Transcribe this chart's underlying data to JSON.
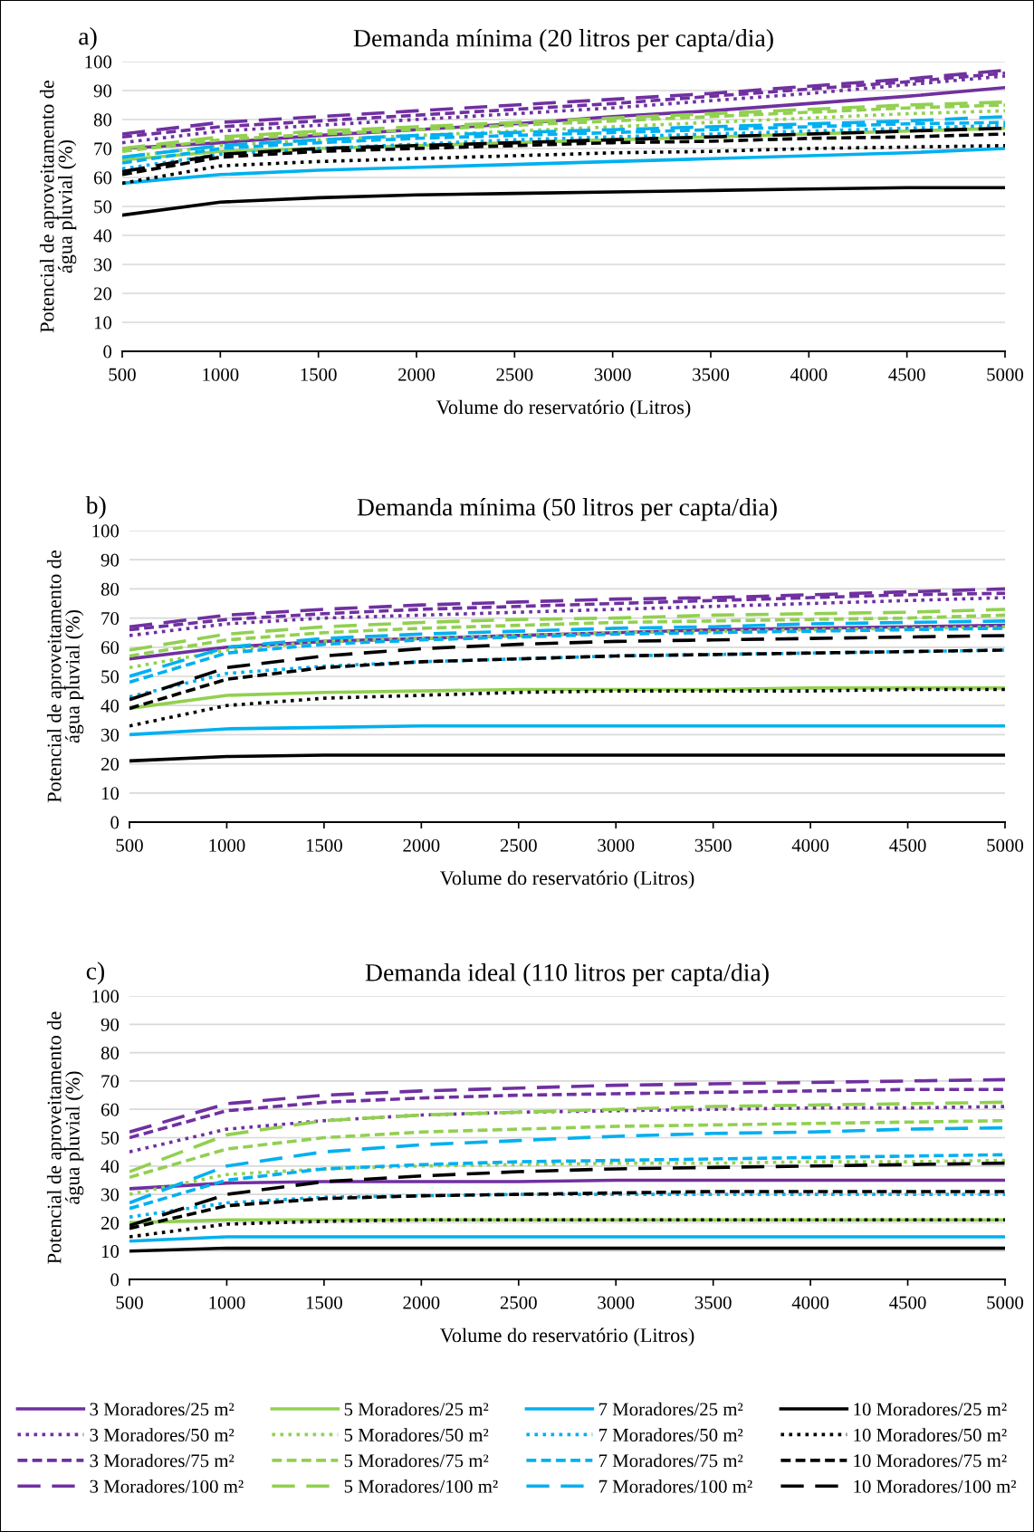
{
  "chart_data": [
    {
      "type": "line",
      "title": "Demanda mínima (20 litros per capta/dia)",
      "annotations": [
        "a)"
      ],
      "xlabel": "Volume do reservatório (Litros)",
      "ylabel": "Potencial de aproveitamento de\nágua pluvial (%)",
      "x": [
        500,
        1000,
        1500,
        2000,
        2500,
        3000,
        3500,
        4000,
        4500,
        5000
      ],
      "xlim": [
        500,
        5000
      ],
      "xticks": [
        500,
        1000,
        1500,
        2000,
        2500,
        3000,
        3500,
        4000,
        4500,
        5000
      ],
      "ylim": [
        0,
        100
      ],
      "yticks": [
        0,
        10,
        20,
        30,
        40,
        50,
        60,
        70,
        80,
        90,
        100
      ],
      "grid": "y",
      "series": [
        {
          "color": "#7030a0",
          "line_style": "solid",
          "values": [
            70,
            72,
            74.5,
            76.5,
            78.5,
            81,
            83,
            85.5,
            88,
            91
          ]
        },
        {
          "color": "#7030a0",
          "line_style": "dotted",
          "values": [
            72,
            76,
            78,
            80,
            82,
            84,
            86.5,
            89,
            92,
            95
          ]
        },
        {
          "color": "#7030a0",
          "line_style": "dashed",
          "values": [
            74,
            77.5,
            79.5,
            81.5,
            83.5,
            85.5,
            88,
            90.5,
            93,
            96
          ]
        },
        {
          "color": "#7030a0",
          "line_style": "long_dashed",
          "values": [
            75,
            79,
            81,
            83,
            85,
            87,
            89,
            91.5,
            94,
            97
          ]
        },
        {
          "color": "#92d050",
          "line_style": "solid",
          "values": [
            66,
            69,
            70,
            71,
            72,
            73,
            74,
            75,
            76,
            77
          ]
        },
        {
          "color": "#92d050",
          "line_style": "dotted",
          "values": [
            67,
            71,
            73,
            74.5,
            76,
            77.5,
            79,
            80.5,
            82,
            83
          ]
        },
        {
          "color": "#92d050",
          "line_style": "dashed",
          "values": [
            69,
            73,
            75,
            76.5,
            78,
            79.5,
            81,
            82.5,
            84,
            85
          ]
        },
        {
          "color": "#92d050",
          "line_style": "long_dashed",
          "values": [
            70,
            74,
            76,
            77.5,
            79,
            80.5,
            82,
            83.5,
            85,
            86
          ]
        },
        {
          "color": "#00b0f0",
          "line_style": "solid",
          "values": [
            58,
            61,
            62.5,
            63.5,
            64.5,
            65.5,
            66.5,
            67.5,
            68.5,
            70
          ]
        },
        {
          "color": "#00b0f0",
          "line_style": "dotted",
          "values": [
            63,
            68,
            70,
            71.5,
            73,
            74,
            75,
            76,
            77,
            78
          ]
        },
        {
          "color": "#00b0f0",
          "line_style": "dashed",
          "values": [
            65,
            70,
            72,
            73.5,
            74.5,
            75.5,
            76.5,
            77.5,
            78.5,
            79
          ]
        },
        {
          "color": "#00b0f0",
          "line_style": "long_dashed",
          "values": [
            67,
            71,
            73,
            74.5,
            75.5,
            76.5,
            77.5,
            78.5,
            79.5,
            81
          ]
        },
        {
          "color": "#000000",
          "line_style": "solid",
          "values": [
            47,
            51.5,
            53,
            54,
            54.5,
            55,
            55.5,
            56,
            56.5,
            56.5
          ]
        },
        {
          "color": "#000000",
          "line_style": "dotted",
          "values": [
            58,
            64,
            65.5,
            66.5,
            67.5,
            68.5,
            69,
            70,
            70.5,
            71
          ]
        },
        {
          "color": "#000000",
          "line_style": "dashed",
          "values": [
            61,
            67,
            69,
            70,
            71,
            72,
            72.5,
            73.5,
            74,
            75
          ]
        },
        {
          "color": "#000000",
          "line_style": "long_dashed",
          "values": [
            62,
            68,
            70,
            71,
            72,
            73,
            74,
            75,
            76,
            77
          ]
        }
      ]
    },
    {
      "type": "line",
      "title": "Demanda mínima (50 litros per capta/dia)",
      "annotations": [
        "b)"
      ],
      "xlabel": "Volume do reservatório (Litros)",
      "ylabel": "Potencial de aproveitamento de\nágua pluvial (%)",
      "x": [
        500,
        1000,
        1500,
        2000,
        2500,
        3000,
        3500,
        4000,
        4500,
        5000
      ],
      "xlim": [
        500,
        5000
      ],
      "xticks": [
        500,
        1000,
        1500,
        2000,
        2500,
        3000,
        3500,
        4000,
        4500,
        5000
      ],
      "ylim": [
        0,
        100
      ],
      "yticks": [
        0,
        10,
        20,
        30,
        40,
        50,
        60,
        70,
        80,
        90,
        100
      ],
      "grid": "y",
      "series": [
        {
          "color": "#7030a0",
          "line_style": "solid",
          "values": [
            56,
            60,
            62,
            63,
            64,
            65,
            66,
            66.5,
            67,
            67.5
          ]
        },
        {
          "color": "#7030a0",
          "line_style": "dotted",
          "values": [
            64,
            68,
            70,
            71,
            72,
            73,
            74,
            75,
            76,
            77
          ]
        },
        {
          "color": "#7030a0",
          "line_style": "dashed",
          "values": [
            66,
            69.5,
            71.5,
            73,
            74,
            75,
            76,
            77,
            78,
            78.5
          ]
        },
        {
          "color": "#7030a0",
          "line_style": "long_dashed",
          "values": [
            67,
            71,
            73,
            74.5,
            75.5,
            76.5,
            77,
            78,
            79,
            80
          ]
        },
        {
          "color": "#92d050",
          "line_style": "solid",
          "values": [
            39,
            43.5,
            44.5,
            45,
            45.5,
            45.5,
            45.5,
            46,
            46,
            46
          ]
        },
        {
          "color": "#92d050",
          "line_style": "dotted",
          "values": [
            53,
            59,
            62,
            63,
            64,
            65,
            65.5,
            66,
            66.5,
            67
          ]
        },
        {
          "color": "#92d050",
          "line_style": "dashed",
          "values": [
            57,
            62.5,
            65,
            66.5,
            67.5,
            68.5,
            69,
            69.5,
            70,
            71
          ]
        },
        {
          "color": "#92d050",
          "line_style": "long_dashed",
          "values": [
            59,
            64.5,
            67,
            68.5,
            69.5,
            70,
            71,
            71.5,
            72,
            73
          ]
        },
        {
          "color": "#00b0f0",
          "line_style": "solid",
          "values": [
            30,
            32,
            32.5,
            33,
            33,
            33,
            33,
            33,
            33,
            33
          ]
        },
        {
          "color": "#00b0f0",
          "line_style": "dotted",
          "values": [
            43,
            51,
            53.5,
            55,
            56,
            57,
            57.5,
            58,
            58.5,
            59
          ]
        },
        {
          "color": "#00b0f0",
          "line_style": "dashed",
          "values": [
            48,
            58,
            61,
            62.5,
            63.5,
            64.5,
            65,
            65.5,
            66,
            66.5
          ]
        },
        {
          "color": "#00b0f0",
          "line_style": "long_dashed",
          "values": [
            50,
            60,
            63,
            64.5,
            65.5,
            66.5,
            67,
            68,
            68.5,
            69
          ]
        },
        {
          "color": "#000000",
          "line_style": "solid",
          "values": [
            21,
            22.5,
            23,
            23,
            23,
            23,
            23,
            23,
            23,
            23
          ]
        },
        {
          "color": "#000000",
          "line_style": "dotted",
          "values": [
            33,
            40,
            42.5,
            43.5,
            44.5,
            45,
            45,
            45,
            45.5,
            45.5
          ]
        },
        {
          "color": "#000000",
          "line_style": "dashed",
          "values": [
            39,
            49,
            53,
            55,
            56,
            57,
            57.5,
            58,
            58.5,
            59
          ]
        },
        {
          "color": "#000000",
          "line_style": "long_dashed",
          "values": [
            42,
            53,
            57,
            59.5,
            61,
            62,
            62.5,
            63,
            63.5,
            64
          ]
        }
      ]
    },
    {
      "type": "line",
      "title": "Demanda ideal (110 litros per capta/dia)",
      "annotations": [
        "c)"
      ],
      "xlabel": "Volume do reservatório (Litros)",
      "ylabel": "Potencial de aproveitamento de\nágua pluvial (%)",
      "x": [
        500,
        1000,
        1500,
        2000,
        2500,
        3000,
        3500,
        4000,
        4500,
        5000
      ],
      "xlim": [
        500,
        5000
      ],
      "xticks": [
        500,
        1000,
        1500,
        2000,
        2500,
        3000,
        3500,
        4000,
        4500,
        5000
      ],
      "ylim": [
        0,
        100
      ],
      "yticks": [
        0,
        10,
        20,
        30,
        40,
        50,
        60,
        70,
        80,
        90,
        100
      ],
      "grid": "y",
      "legend": "bottom",
      "series": [
        {
          "name": "3 Moradores/25 m²",
          "color": "#7030a0",
          "line_style": "solid",
          "values": [
            32,
            34,
            34.5,
            34.5,
            34.5,
            35,
            35,
            35,
            35,
            35
          ]
        },
        {
          "name": "3 Moradores/50 m²",
          "color": "#7030a0",
          "line_style": "dotted",
          "values": [
            45,
            53,
            56,
            58,
            59,
            59.5,
            60,
            60.5,
            60.5,
            61
          ]
        },
        {
          "name": "3 Moradores/75 m²",
          "color": "#7030a0",
          "line_style": "dashed",
          "values": [
            50,
            59.5,
            62.5,
            64,
            65,
            65.5,
            66,
            66.5,
            67,
            67
          ]
        },
        {
          "name": "3 Moradores/100 m²",
          "color": "#7030a0",
          "line_style": "long_dashed",
          "values": [
            52,
            62,
            65,
            66.5,
            67.5,
            68.5,
            69,
            69.5,
            70,
            70.5
          ]
        },
        {
          "name": "5 Moradores/25 m²",
          "color": "#92d050",
          "line_style": "solid",
          "values": [
            20,
            21,
            21,
            21,
            21,
            21,
            21,
            21,
            21,
            21
          ]
        },
        {
          "name": "5 Moradores/50 m²",
          "color": "#92d050",
          "line_style": "dotted",
          "values": [
            30,
            37,
            39,
            40,
            40.5,
            41,
            41,
            41.5,
            41.5,
            42
          ]
        },
        {
          "name": "5 Moradores/75 m²",
          "color": "#92d050",
          "line_style": "dashed",
          "values": [
            36,
            46,
            50,
            52,
            53,
            54,
            54.5,
            55,
            55.5,
            56
          ]
        },
        {
          "name": "5 Moradores/100 m²",
          "color": "#92d050",
          "line_style": "long_dashed",
          "values": [
            38,
            51,
            56,
            58,
            59,
            60,
            61,
            61.5,
            62,
            62.5
          ]
        },
        {
          "name": "7 Moradores/25 m²",
          "color": "#00b0f0",
          "line_style": "solid",
          "values": [
            13.5,
            15,
            15,
            15,
            15,
            15,
            15,
            15,
            15,
            15
          ]
        },
        {
          "name": "7 Moradores/50 m²",
          "color": "#00b0f0",
          "line_style": "dotted",
          "values": [
            22,
            27,
            29,
            29.5,
            30,
            30,
            30,
            30,
            30,
            30
          ]
        },
        {
          "name": "7 Moradores/75 m²",
          "color": "#00b0f0",
          "line_style": "dashed",
          "values": [
            25,
            35,
            39,
            40.5,
            41.5,
            42,
            42.5,
            43,
            43.5,
            44
          ]
        },
        {
          "name": "7 Moradores/100 m²",
          "color": "#00b0f0",
          "line_style": "long_dashed",
          "values": [
            27,
            40,
            45,
            47.5,
            49,
            50.5,
            51.5,
            52,
            53,
            53.5
          ]
        },
        {
          "name": "10 Moradores/25 m²",
          "color": "#000000",
          "line_style": "solid",
          "values": [
            10,
            11,
            11,
            11,
            11,
            11,
            11,
            11,
            11,
            11
          ]
        },
        {
          "name": "10 Moradores/50 m²",
          "color": "#000000",
          "line_style": "dotted",
          "values": [
            15,
            19.5,
            20.5,
            21,
            21,
            21,
            21,
            21,
            21,
            21
          ]
        },
        {
          "name": "10 Moradores/75 m²",
          "color": "#000000",
          "line_style": "dashed",
          "values": [
            18,
            26,
            28.5,
            29.5,
            30,
            30.5,
            31,
            31,
            31,
            31
          ]
        },
        {
          "name": "10 Moradores/100 m²",
          "color": "#000000",
          "line_style": "long_dashed",
          "values": [
            19,
            30,
            34.5,
            36.5,
            38,
            39,
            39.5,
            40,
            40.5,
            41
          ]
        }
      ]
    }
  ]
}
